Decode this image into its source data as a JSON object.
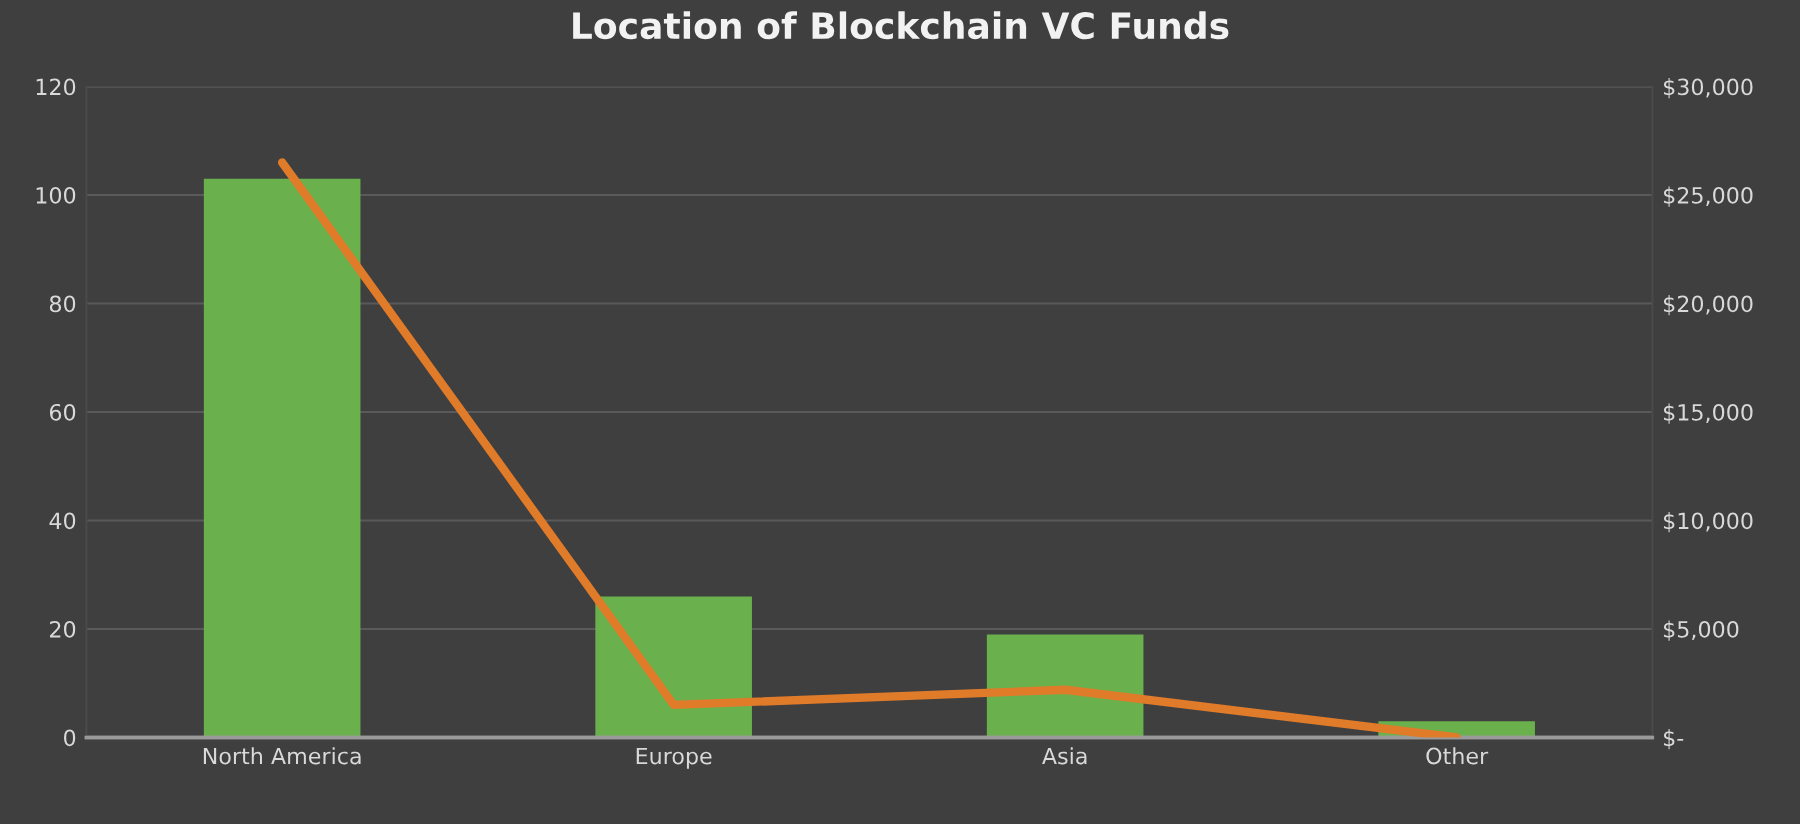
{
  "chart_data": {
    "type": "bar",
    "title": "Location of Blockchain VC Funds",
    "categories": [
      "North America",
      "Europe",
      "Asia",
      "Other"
    ],
    "series": [
      {
        "color": "#6ab04c",
        "values": [
          103,
          26,
          19,
          3
        ]
      },
      {
        "type": "line",
        "axis": "y2",
        "color": "#e07b2a",
        "values": [
          26500,
          1500,
          2200,
          0
        ]
      }
    ],
    "ylim": [
      0,
      120
    ],
    "yticks": [
      0,
      20,
      40,
      60,
      80,
      100,
      120
    ],
    "y2lim": [
      0,
      30000
    ],
    "y2ticks": [
      {
        "value": 0,
        "label": "$-"
      },
      {
        "value": 5000,
        "label": "$5,000"
      },
      {
        "value": 10000,
        "label": "$10,000"
      },
      {
        "value": 15000,
        "label": "$15,000"
      },
      {
        "value": 20000,
        "label": "$20,000"
      },
      {
        "value": 25000,
        "label": "$25,000"
      },
      {
        "value": 30000,
        "label": "$30,000"
      }
    ],
    "grid": "y"
  }
}
